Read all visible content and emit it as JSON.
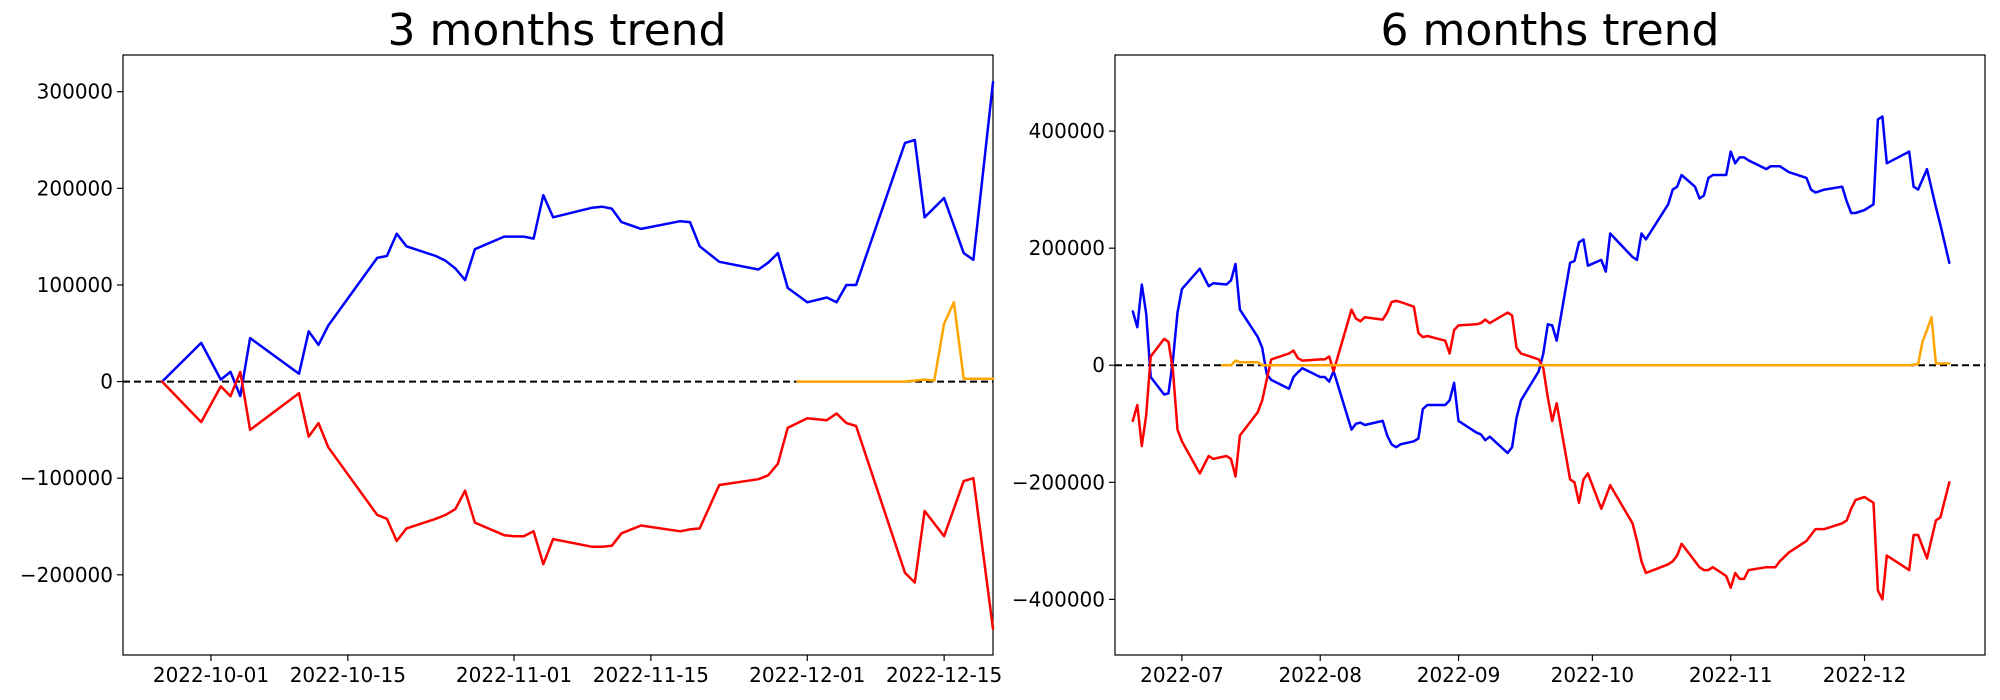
{
  "charts": [
    {
      "title": "3 months trend",
      "type": "line",
      "xlim": [
        "2022-09-22",
        "2022-12-20"
      ],
      "ylim": [
        -283000,
        338000
      ],
      "x_ticks": [
        {
          "date": "2022-10-01",
          "label": "2022-10-01"
        },
        {
          "date": "2022-10-15",
          "label": "2022-10-15"
        },
        {
          "date": "2022-11-01",
          "label": "2022-11-01"
        },
        {
          "date": "2022-11-15",
          "label": "2022-11-15"
        },
        {
          "date": "2022-12-01",
          "label": "2022-12-01"
        },
        {
          "date": "2022-12-15",
          "label": "2022-12-15"
        }
      ],
      "y_ticks": [
        {
          "value": 300000,
          "label": "300000"
        },
        {
          "value": 200000,
          "label": "200000"
        },
        {
          "value": 100000,
          "label": "100000"
        },
        {
          "value": 0,
          "label": "0"
        },
        {
          "value": -100000,
          "label": "−100000"
        },
        {
          "value": -200000,
          "label": "−200000"
        }
      ],
      "zero_line": true
    },
    {
      "title": "6 months trend",
      "type": "line",
      "xlim": [
        "2022-06-16",
        "2022-12-28"
      ],
      "ylim": [
        -495000,
        530000
      ],
      "x_ticks": [
        {
          "date": "2022-07-01",
          "label": "2022-07"
        },
        {
          "date": "2022-08-01",
          "label": "2022-08"
        },
        {
          "date": "2022-09-01",
          "label": "2022-09"
        },
        {
          "date": "2022-10-01",
          "label": "2022-10"
        },
        {
          "date": "2022-11-01",
          "label": "2022-11"
        },
        {
          "date": "2022-12-01",
          "label": "2022-12"
        }
      ],
      "y_ticks": [
        {
          "value": 400000,
          "label": "400000"
        },
        {
          "value": 200000,
          "label": "200000"
        },
        {
          "value": 0,
          "label": "0"
        },
        {
          "value": -200000,
          "label": "−200000"
        },
        {
          "value": -400000,
          "label": "−400000"
        }
      ],
      "zero_line": true
    }
  ],
  "chart_data": [
    {
      "type": "line",
      "title": "3 months trend",
      "xlabel": "",
      "ylabel": "",
      "grid": false,
      "series": [
        {
          "color": "#0000ff",
          "x": [
            "2022-09-26",
            "2022-09-30",
            "2022-10-02",
            "2022-10-03",
            "2022-10-04",
            "2022-10-05",
            "2022-10-10",
            "2022-10-11",
            "2022-10-12",
            "2022-10-13",
            "2022-10-18",
            "2022-10-19",
            "2022-10-20",
            "2022-10-21",
            "2022-10-24",
            "2022-10-25",
            "2022-10-26",
            "2022-10-27",
            "2022-10-28",
            "2022-10-31",
            "2022-11-01",
            "2022-11-02",
            "2022-11-03",
            "2022-11-04",
            "2022-11-05",
            "2022-11-09",
            "2022-11-10",
            "2022-11-11",
            "2022-11-12",
            "2022-11-14",
            "2022-11-18",
            "2022-11-19",
            "2022-11-20",
            "2022-11-22",
            "2022-11-26",
            "2022-11-27",
            "2022-11-28",
            "2022-11-29",
            "2022-12-01",
            "2022-12-03",
            "2022-12-04",
            "2022-12-05",
            "2022-12-06",
            "2022-12-11",
            "2022-12-12",
            "2022-12-13",
            "2022-12-15",
            "2022-12-17",
            "2022-12-18",
            "2022-12-20"
          ],
          "values": [
            0,
            40000,
            2000,
            10000,
            -15000,
            45000,
            8000,
            52000,
            38000,
            58000,
            128000,
            130000,
            153000,
            140000,
            130000,
            125000,
            117000,
            105000,
            137000,
            150000,
            150000,
            150000,
            148000,
            193000,
            170000,
            180000,
            181000,
            179000,
            165000,
            158000,
            166000,
            165000,
            140000,
            124000,
            116000,
            123000,
            133000,
            97000,
            82000,
            87000,
            82000,
            100000,
            100000,
            247000,
            250000,
            170000,
            190000,
            133000,
            126000,
            310000
          ]
        },
        {
          "color": "#ff0000",
          "x": [
            "2022-09-26",
            "2022-09-30",
            "2022-10-02",
            "2022-10-03",
            "2022-10-04",
            "2022-10-05",
            "2022-10-10",
            "2022-10-11",
            "2022-10-12",
            "2022-10-13",
            "2022-10-18",
            "2022-10-19",
            "2022-10-20",
            "2022-10-21",
            "2022-10-24",
            "2022-10-25",
            "2022-10-26",
            "2022-10-27",
            "2022-10-28",
            "2022-10-31",
            "2022-11-01",
            "2022-11-02",
            "2022-11-03",
            "2022-11-04",
            "2022-11-05",
            "2022-11-09",
            "2022-11-10",
            "2022-11-11",
            "2022-11-12",
            "2022-11-14",
            "2022-11-18",
            "2022-11-19",
            "2022-11-20",
            "2022-11-22",
            "2022-11-26",
            "2022-11-27",
            "2022-11-28",
            "2022-11-29",
            "2022-12-01",
            "2022-12-03",
            "2022-12-04",
            "2022-12-05",
            "2022-12-06",
            "2022-12-11",
            "2022-12-12",
            "2022-12-13",
            "2022-12-15",
            "2022-12-17",
            "2022-12-18",
            "2022-12-20"
          ],
          "values": [
            0,
            -42000,
            -5000,
            -15000,
            10000,
            -50000,
            -12000,
            -57000,
            -43000,
            -68000,
            -138000,
            -142000,
            -165000,
            -152000,
            -142000,
            -138000,
            -132000,
            -113000,
            -146000,
            -159000,
            -160000,
            -160000,
            -155000,
            -189000,
            -163000,
            -171000,
            -171000,
            -170000,
            -157000,
            -149000,
            -155000,
            -153000,
            -152000,
            -107000,
            -101000,
            -97000,
            -85000,
            -48000,
            -38000,
            -40000,
            -33000,
            -43000,
            -46000,
            -198000,
            -208000,
            -134000,
            -160000,
            -103000,
            -100000,
            -256000
          ]
        },
        {
          "color": "#ffa500",
          "x": [
            "2022-11-30",
            "2022-12-01",
            "2022-12-11",
            "2022-12-12",
            "2022-12-13",
            "2022-12-14",
            "2022-12-15",
            "2022-12-16",
            "2022-12-17",
            "2022-12-18",
            "2022-12-19",
            "2022-12-20"
          ],
          "values": [
            0,
            0,
            0,
            1000,
            2000,
            1000,
            60000,
            82000,
            3000,
            3000,
            3000,
            3000
          ]
        }
      ]
    },
    {
      "type": "line",
      "title": "6 months trend",
      "xlabel": "",
      "ylabel": "",
      "grid": false,
      "series": [
        {
          "color": "#0000ff",
          "x": [
            "2022-06-20",
            "2022-06-21",
            "2022-06-22",
            "2022-06-23",
            "2022-06-24",
            "2022-06-27",
            "2022-06-28",
            "2022-06-29",
            "2022-06-30",
            "2022-07-01",
            "2022-07-05",
            "2022-07-06",
            "2022-07-07",
            "2022-07-08",
            "2022-07-11",
            "2022-07-12",
            "2022-07-13",
            "2022-07-14",
            "2022-07-18",
            "2022-07-19",
            "2022-07-20",
            "2022-07-21",
            "2022-07-25",
            "2022-07-26",
            "2022-07-27",
            "2022-07-28",
            "2022-08-01",
            "2022-08-02",
            "2022-08-03",
            "2022-08-04",
            "2022-08-08",
            "2022-08-09",
            "2022-08-10",
            "2022-08-11",
            "2022-08-15",
            "2022-08-16",
            "2022-08-17",
            "2022-08-18",
            "2022-08-19",
            "2022-08-22",
            "2022-08-23",
            "2022-08-24",
            "2022-08-25",
            "2022-08-29",
            "2022-08-30",
            "2022-08-31",
            "2022-09-01",
            "2022-09-05",
            "2022-09-06",
            "2022-09-07",
            "2022-09-08",
            "2022-09-12",
            "2022-09-13",
            "2022-09-14",
            "2022-09-15",
            "2022-09-19",
            "2022-09-20",
            "2022-09-21",
            "2022-09-22",
            "2022-09-23",
            "2022-09-26",
            "2022-09-27",
            "2022-09-28",
            "2022-09-29",
            "2022-09-30",
            "2022-10-03",
            "2022-10-04",
            "2022-10-05",
            "2022-10-10",
            "2022-10-11",
            "2022-10-12",
            "2022-10-13",
            "2022-10-18",
            "2022-10-19",
            "2022-10-20",
            "2022-10-21",
            "2022-10-24",
            "2022-10-25",
            "2022-10-26",
            "2022-10-27",
            "2022-10-28",
            "2022-10-31",
            "2022-11-01",
            "2022-11-02",
            "2022-11-03",
            "2022-11-04",
            "2022-11-05",
            "2022-11-09",
            "2022-11-10",
            "2022-11-11",
            "2022-11-12",
            "2022-11-14",
            "2022-11-18",
            "2022-11-19",
            "2022-11-20",
            "2022-11-22",
            "2022-11-26",
            "2022-11-27",
            "2022-11-28",
            "2022-11-29",
            "2022-12-01",
            "2022-12-03",
            "2022-12-04",
            "2022-12-05",
            "2022-12-06",
            "2022-12-11",
            "2022-12-12",
            "2022-12-13",
            "2022-12-15",
            "2022-12-17",
            "2022-12-18",
            "2022-12-20"
          ],
          "values": [
            92000,
            65000,
            138000,
            88000,
            -20000,
            -50000,
            -48000,
            10000,
            90000,
            130000,
            165000,
            150000,
            135000,
            140000,
            138000,
            145000,
            173000,
            95000,
            48000,
            30000,
            -15000,
            -25000,
            -40000,
            -20000,
            -12000,
            -5000,
            -20000,
            -20000,
            -28000,
            -10000,
            -110000,
            -100000,
            -98000,
            -102000,
            -95000,
            -120000,
            -135000,
            -140000,
            -135000,
            -130000,
            -125000,
            -75000,
            -68000,
            -68000,
            -60000,
            -30000,
            -95000,
            -115000,
            -118000,
            -128000,
            -122000,
            -150000,
            -140000,
            -90000,
            -60000,
            -10000,
            20000,
            70000,
            68000,
            42000,
            175000,
            178000,
            210000,
            215000,
            170000,
            180000,
            160000,
            225000,
            185000,
            180000,
            225000,
            215000,
            275000,
            300000,
            305000,
            325000,
            305000,
            285000,
            290000,
            320000,
            325000,
            325000,
            365000,
            345000,
            355000,
            355000,
            350000,
            335000,
            340000,
            340000,
            340000,
            330000,
            320000,
            300000,
            295000,
            300000,
            305000,
            280000,
            260000,
            260000,
            265000,
            275000,
            420000,
            425000,
            345000,
            365000,
            305000,
            300000,
            335000,
            270000,
            240000,
            175000
          ]
        },
        {
          "color": "#ff0000",
          "x": [
            "2022-06-20",
            "2022-06-21",
            "2022-06-22",
            "2022-06-23",
            "2022-06-24",
            "2022-06-27",
            "2022-06-28",
            "2022-06-29",
            "2022-06-30",
            "2022-07-01",
            "2022-07-05",
            "2022-07-06",
            "2022-07-07",
            "2022-07-08",
            "2022-07-11",
            "2022-07-12",
            "2022-07-13",
            "2022-07-14",
            "2022-07-18",
            "2022-07-19",
            "2022-07-20",
            "2022-07-21",
            "2022-07-25",
            "2022-07-26",
            "2022-07-27",
            "2022-07-28",
            "2022-08-01",
            "2022-08-02",
            "2022-08-03",
            "2022-08-04",
            "2022-08-08",
            "2022-08-09",
            "2022-08-10",
            "2022-08-11",
            "2022-08-15",
            "2022-08-16",
            "2022-08-17",
            "2022-08-18",
            "2022-08-19",
            "2022-08-22",
            "2022-08-23",
            "2022-08-24",
            "2022-08-25",
            "2022-08-29",
            "2022-08-30",
            "2022-08-31",
            "2022-09-01",
            "2022-09-05",
            "2022-09-06",
            "2022-09-07",
            "2022-09-08",
            "2022-09-12",
            "2022-09-13",
            "2022-09-14",
            "2022-09-15",
            "2022-09-19",
            "2022-09-20",
            "2022-09-21",
            "2022-09-22",
            "2022-09-23",
            "2022-09-26",
            "2022-09-27",
            "2022-09-28",
            "2022-09-29",
            "2022-09-30",
            "2022-10-03",
            "2022-10-04",
            "2022-10-05",
            "2022-10-10",
            "2022-10-11",
            "2022-10-12",
            "2022-10-13",
            "2022-10-18",
            "2022-10-19",
            "2022-10-20",
            "2022-10-21",
            "2022-10-24",
            "2022-10-25",
            "2022-10-26",
            "2022-10-27",
            "2022-10-28",
            "2022-10-31",
            "2022-11-01",
            "2022-11-02",
            "2022-11-03",
            "2022-11-04",
            "2022-11-05",
            "2022-11-09",
            "2022-11-10",
            "2022-11-11",
            "2022-11-12",
            "2022-11-14",
            "2022-11-18",
            "2022-11-19",
            "2022-11-20",
            "2022-11-22",
            "2022-11-26",
            "2022-11-27",
            "2022-11-28",
            "2022-11-29",
            "2022-12-01",
            "2022-12-03",
            "2022-12-04",
            "2022-12-05",
            "2022-12-06",
            "2022-12-11",
            "2022-12-12",
            "2022-12-13",
            "2022-12-15",
            "2022-12-17",
            "2022-12-18",
            "2022-12-20"
          ],
          "values": [
            -95000,
            -68000,
            -138000,
            -85000,
            15000,
            45000,
            40000,
            -10000,
            -110000,
            -130000,
            -185000,
            -170000,
            -155000,
            -160000,
            -155000,
            -160000,
            -190000,
            -120000,
            -80000,
            -60000,
            -25000,
            10000,
            20000,
            25000,
            12000,
            8000,
            10000,
            10000,
            15000,
            -10000,
            95000,
            80000,
            75000,
            82000,
            78000,
            90000,
            108000,
            110000,
            108000,
            100000,
            55000,
            48000,
            50000,
            42000,
            20000,
            60000,
            68000,
            70000,
            72000,
            78000,
            72000,
            90000,
            85000,
            30000,
            20000,
            10000,
            -5000,
            -55000,
            -95000,
            -65000,
            -195000,
            -200000,
            -235000,
            -195000,
            -185000,
            -245000,
            -225000,
            -205000,
            -270000,
            -300000,
            -335000,
            -355000,
            -340000,
            -335000,
            -325000,
            -305000,
            -335000,
            -345000,
            -350000,
            -350000,
            -345000,
            -360000,
            -380000,
            -355000,
            -365000,
            -365000,
            -350000,
            -345000,
            -345000,
            -345000,
            -335000,
            -320000,
            -300000,
            -290000,
            -280000,
            -280000,
            -270000,
            -265000,
            -245000,
            -230000,
            -225000,
            -235000,
            -385000,
            -400000,
            -325000,
            -350000,
            -290000,
            -290000,
            -330000,
            -265000,
            -260000,
            -200000
          ]
        },
        {
          "color": "#ffa500",
          "x": [
            "2022-07-10",
            "2022-07-12",
            "2022-07-13",
            "2022-07-14",
            "2022-07-18",
            "2022-07-19",
            "2022-12-06",
            "2022-12-11",
            "2022-12-12",
            "2022-12-13",
            "2022-12-14",
            "2022-12-15",
            "2022-12-16",
            "2022-12-17",
            "2022-12-18",
            "2022-12-20"
          ],
          "values": [
            0,
            0,
            8000,
            5000,
            5000,
            0,
            0,
            0,
            1000,
            2000,
            40000,
            60000,
            82000,
            3000,
            3000,
            3000
          ]
        }
      ]
    }
  ]
}
